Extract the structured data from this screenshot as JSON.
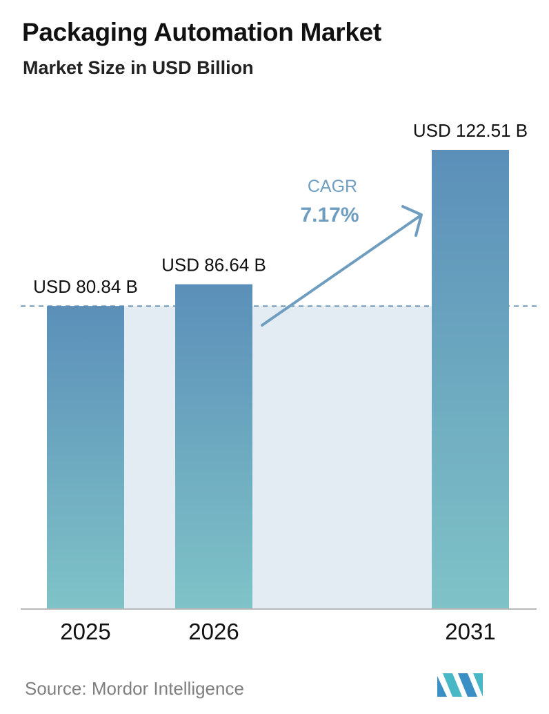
{
  "header": {
    "title": "Packaging Automation Market",
    "subtitle": "Market Size in USD Billion"
  },
  "cagr": {
    "label": "CAGR",
    "value": "7.17%"
  },
  "source": {
    "text": "Source:  Mordor Intelligence"
  },
  "colors": {
    "bar_top": "#5b8fb9",
    "bar_bottom": "#7fc3c7",
    "band": "#e3ebf3",
    "accent": "#6f9dc0",
    "axis": "#b8b8b8"
  },
  "chart_data": {
    "type": "bar",
    "categories": [
      "2025",
      "2026",
      "2031"
    ],
    "values": [
      80.84,
      86.64,
      122.51
    ],
    "value_labels": [
      "USD 80.84 B",
      "USD 86.64 B",
      "USD 122.51 B"
    ],
    "ylim": [
      0,
      133
    ],
    "reference_line": 80.84,
    "grid": false,
    "legend": "none"
  }
}
